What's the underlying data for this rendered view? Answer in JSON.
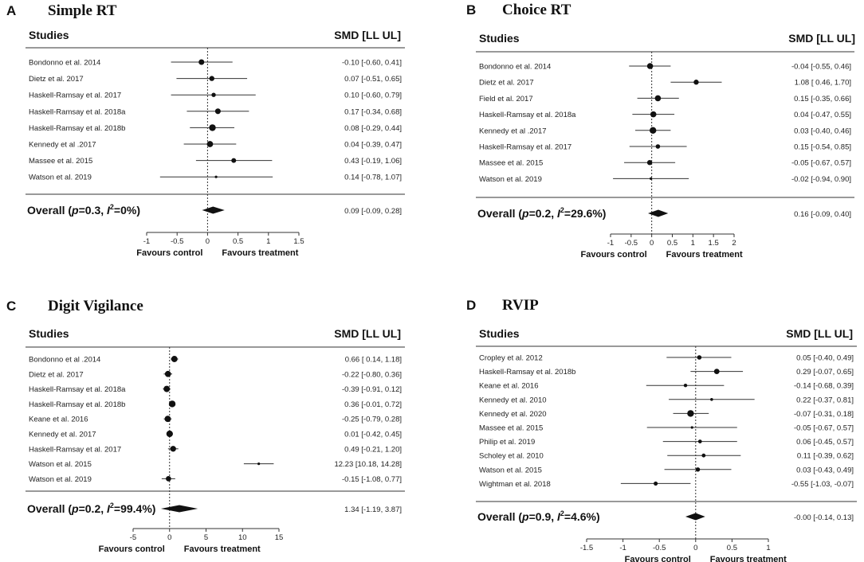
{
  "chart_data": [
    {
      "type": "forest",
      "letter": "A",
      "title": "Simple RT",
      "studies_header": "Studies",
      "smd_header": "SMD [LL UL]",
      "studies": [
        {
          "name": "Bondonno et al. 2014",
          "smd": -0.1,
          "ll": -0.6,
          "ul": 0.41,
          "label": "-0.10 [-0.60, 0.41]"
        },
        {
          "name": "Dietz et al. 2017",
          "smd": 0.07,
          "ll": -0.51,
          "ul": 0.65,
          "label": "0.07 [-0.51, 0.65]"
        },
        {
          "name": "Haskell-Ramsay et al. 2017",
          "smd": 0.1,
          "ll": -0.6,
          "ul": 0.79,
          "label": "0.10 [-0.60, 0.79]"
        },
        {
          "name": "Haskell-Ramsay et al. 2018a",
          "smd": 0.17,
          "ll": -0.34,
          "ul": 0.68,
          "label": "0.17 [-0.34, 0.68]"
        },
        {
          "name": "Haskell-Ramsay et al. 2018b",
          "smd": 0.08,
          "ll": -0.29,
          "ul": 0.44,
          "label": "0.08 [-0.29, 0.44]"
        },
        {
          "name": "Kennedy et al .2017",
          "smd": 0.04,
          "ll": -0.39,
          "ul": 0.47,
          "label": "0.04 [-0.39, 0.47]"
        },
        {
          "name": "Massee et al. 2015",
          "smd": 0.43,
          "ll": -0.19,
          "ul": 1.06,
          "label": "0.43 [-0.19, 1.06]"
        },
        {
          "name": "Watson et al. 2019",
          "smd": 0.14,
          "ll": -0.78,
          "ul": 1.07,
          "label": "0.14 [-0.78, 1.07]"
        }
      ],
      "overall": {
        "p_text": "p=0.3",
        "i2_text": "=0%",
        "smd": 0.09,
        "ll": -0.09,
        "ul": 0.28,
        "label": "0.09 [-0.09, 0.28]"
      },
      "xlim": [
        -1,
        1.5
      ],
      "ticks": [
        -1,
        -0.5,
        0,
        0.5,
        1,
        1.5
      ],
      "tick_labels": [
        "-1",
        "-0.5",
        "0",
        "0.5",
        "1",
        "1.5"
      ],
      "favours_control": "Favours control",
      "favours_treatment": "Favours treatment"
    },
    {
      "type": "forest",
      "letter": "B",
      "title": "Choice RT",
      "studies_header": "Studies",
      "smd_header": "SMD [LL UL]",
      "studies": [
        {
          "name": "Bondonno et al. 2014",
          "smd": -0.04,
          "ll": -0.55,
          "ul": 0.46,
          "label": "-0.04 [-0.55, 0.46]"
        },
        {
          "name": "Dietz et al. 2017",
          "smd": 1.08,
          "ll": 0.46,
          "ul": 1.7,
          "label": "1.08 [ 0.46, 1.70]"
        },
        {
          "name": "Field et al. 2017",
          "smd": 0.15,
          "ll": -0.35,
          "ul": 0.66,
          "label": "0.15 [-0.35, 0.66]"
        },
        {
          "name": "Haskell-Ramsay et al. 2018a",
          "smd": 0.04,
          "ll": -0.47,
          "ul": 0.55,
          "label": "0.04 [-0.47, 0.55]"
        },
        {
          "name": "Kennedy et al .2017",
          "smd": 0.03,
          "ll": -0.4,
          "ul": 0.46,
          "label": "0.03 [-0.40, 0.46]"
        },
        {
          "name": "Haskell-Ramsay et al. 2017",
          "smd": 0.15,
          "ll": -0.54,
          "ul": 0.85,
          "label": "0.15 [-0.54, 0.85]"
        },
        {
          "name": "Massee et al. 2015",
          "smd": -0.05,
          "ll": -0.67,
          "ul": 0.57,
          "label": "-0.05 [-0.67, 0.57]"
        },
        {
          "name": "Watson et al. 2019",
          "smd": -0.02,
          "ll": -0.94,
          "ul": 0.9,
          "label": "-0.02 [-0.94, 0.90]"
        }
      ],
      "overall": {
        "p_text": "p=0.2",
        "i2_text": "=29.6%",
        "smd": 0.16,
        "ll": -0.09,
        "ul": 0.4,
        "label": "0.16 [-0.09, 0.40]"
      },
      "xlim": [
        -1,
        2
      ],
      "ticks": [
        -1,
        -0.5,
        0,
        0.5,
        1,
        1.5,
        2
      ],
      "tick_labels": [
        "-1",
        "-0.5",
        "0",
        "0.5",
        "1",
        "1.5",
        "2"
      ],
      "favours_control": "Favours control",
      "favours_treatment": "Favours treatment"
    },
    {
      "type": "forest",
      "letter": "C",
      "title": "Digit Vigilance",
      "studies_header": "Studies",
      "smd_header": "SMD [LL UL]",
      "studies": [
        {
          "name": "Bondonno et al .2014",
          "smd": 0.66,
          "ll": 0.14,
          "ul": 1.18,
          "label": "0.66 [ 0.14, 1.18]"
        },
        {
          "name": "Dietz et al. 2017",
          "smd": -0.22,
          "ll": -0.8,
          "ul": 0.36,
          "label": "-0.22 [-0.80, 0.36]"
        },
        {
          "name": "Haskell-Ramsay et al. 2018a",
          "smd": -0.39,
          "ll": -0.91,
          "ul": 0.12,
          "label": "-0.39 [-0.91, 0.12]"
        },
        {
          "name": "Haskell-Ramsay et al. 2018b",
          "smd": 0.36,
          "ll": -0.01,
          "ul": 0.72,
          "label": "0.36 [-0.01, 0.72]"
        },
        {
          "name": "Keane et al. 2016",
          "smd": -0.25,
          "ll": -0.79,
          "ul": 0.28,
          "label": "-0.25 [-0.79, 0.28]"
        },
        {
          "name": "Kennedy et al. 2017",
          "smd": 0.01,
          "ll": -0.42,
          "ul": 0.45,
          "label": "0.01 [-0.42, 0.45]"
        },
        {
          "name": "Haskell-Ramsay et al. 2017",
          "smd": 0.49,
          "ll": -0.21,
          "ul": 1.2,
          "label": "0.49 [-0.21, 1.20]"
        },
        {
          "name": "Watson et al. 2015",
          "smd": 12.23,
          "ll": 10.18,
          "ul": 14.28,
          "label": "12.23 [10.18, 14.28]"
        },
        {
          "name": "Watson et al. 2019",
          "smd": -0.15,
          "ll": -1.08,
          "ul": 0.77,
          "label": "-0.15 [-1.08, 0.77]"
        }
      ],
      "overall": {
        "p_text": "p=0.2",
        "i2_text": "=99.4%",
        "smd": 1.34,
        "ll": -1.19,
        "ul": 3.87,
        "label": "1.34 [-1.19, 3.87]"
      },
      "xlim": [
        -5,
        15
      ],
      "ticks": [
        -5,
        0,
        5,
        10,
        15
      ],
      "tick_labels": [
        "-5",
        "0",
        "5",
        "10",
        "15"
      ],
      "favours_control": "Favours control",
      "favours_treatment": "Favours treatment"
    },
    {
      "type": "forest",
      "letter": "D",
      "title": "RVIP",
      "studies_header": "Studies",
      "smd_header": "SMD [LL UL]",
      "studies": [
        {
          "name": "Cropley et al. 2012",
          "smd": 0.05,
          "ll": -0.4,
          "ul": 0.49,
          "label": "0.05 [-0.40, 0.49]"
        },
        {
          "name": "Haskell-Ramsay et al. 2018b",
          "smd": 0.29,
          "ll": -0.07,
          "ul": 0.65,
          "label": "0.29 [-0.07, 0.65]"
        },
        {
          "name": "Keane et al. 2016",
          "smd": -0.14,
          "ll": -0.68,
          "ul": 0.39,
          "label": "-0.14 [-0.68, 0.39]"
        },
        {
          "name": "Kennedy et al. 2010",
          "smd": 0.22,
          "ll": -0.37,
          "ul": 0.81,
          "label": "0.22 [-0.37, 0.81]"
        },
        {
          "name": "Kennedy et al. 2020",
          "smd": -0.07,
          "ll": -0.31,
          "ul": 0.18,
          "label": "-0.07 [-0.31, 0.18]"
        },
        {
          "name": "Massee et al. 2015",
          "smd": -0.05,
          "ll": -0.67,
          "ul": 0.57,
          "label": "-0.05 [-0.67, 0.57]"
        },
        {
          "name": "Philip et al. 2019",
          "smd": 0.06,
          "ll": -0.45,
          "ul": 0.57,
          "label": "0.06 [-0.45, 0.57]"
        },
        {
          "name": "Scholey et al. 2010",
          "smd": 0.11,
          "ll": -0.39,
          "ul": 0.62,
          "label": "0.11 [-0.39, 0.62]"
        },
        {
          "name": "Watson et al. 2015",
          "smd": 0.03,
          "ll": -0.43,
          "ul": 0.49,
          "label": "0.03 [-0.43, 0.49]"
        },
        {
          "name": "Wightman et al. 2018",
          "smd": -0.55,
          "ll": -1.03,
          "ul": -0.07,
          "label": "-0.55 [-1.03, -0.07]"
        }
      ],
      "overall": {
        "p_text": "p=0.9",
        "i2_text": "=4.6%",
        "smd": 0.0,
        "ll": -0.14,
        "ul": 0.13,
        "label": "-0.00 [-0.14, 0.13]"
      },
      "xlim": [
        -1.5,
        1
      ],
      "ticks": [
        -1.5,
        -1,
        -0.5,
        0,
        0.5,
        1
      ],
      "tick_labels": [
        "-1.5",
        "-1",
        "-0.5",
        "0",
        "0.5",
        "1"
      ],
      "favours_control": "Favours control",
      "favours_treatment": "Favours treatment"
    }
  ]
}
